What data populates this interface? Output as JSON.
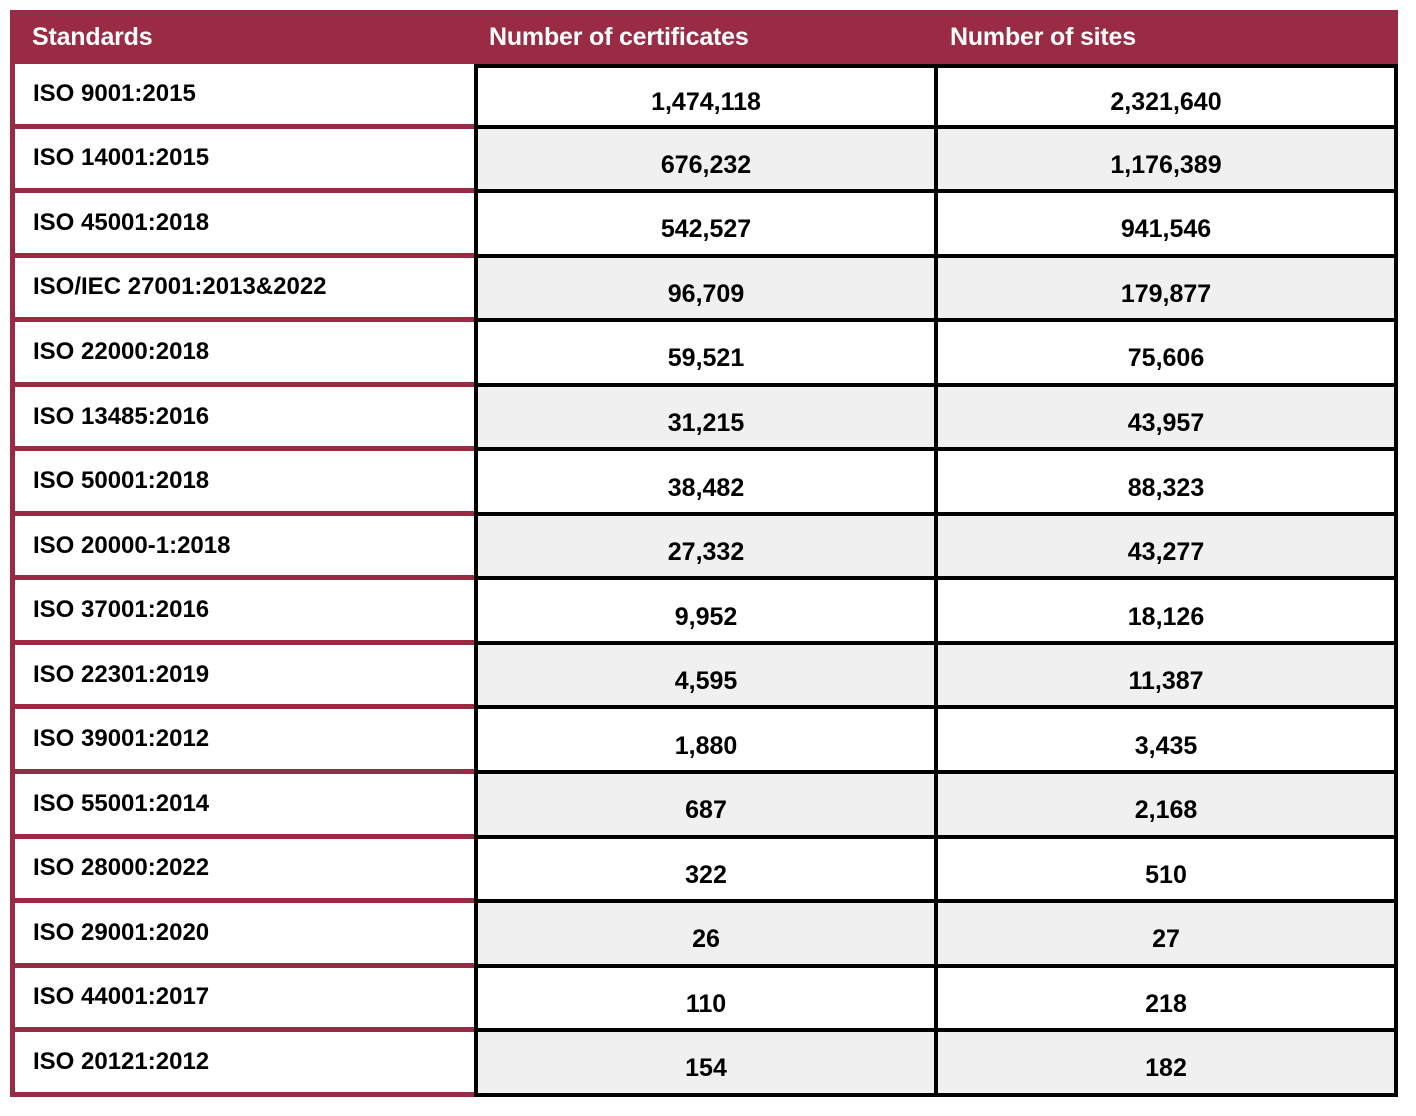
{
  "chart_data": {
    "type": "table",
    "columns": [
      "Standards",
      "Number of certificates",
      "Number of sites"
    ],
    "rows": [
      [
        "ISO 9001:2015",
        "1,474,118",
        "2,321,640"
      ],
      [
        "ISO 14001:2015",
        "676,232",
        "1,176,389"
      ],
      [
        "ISO 45001:2018",
        "542,527",
        "941,546"
      ],
      [
        "ISO/IEC 27001:2013&2022",
        "96,709",
        "179,877"
      ],
      [
        "ISO 22000:2018",
        "59,521",
        "75,606"
      ],
      [
        "ISO 13485:2016",
        "31,215",
        "43,957"
      ],
      [
        "ISO 50001:2018",
        "38,482",
        "88,323"
      ],
      [
        "ISO 20000-1:2018",
        "27,332",
        "43,277"
      ],
      [
        "ISO 37001:2016",
        "9,952",
        "18,126"
      ],
      [
        "ISO 22301:2019",
        "4,595",
        "11,387"
      ],
      [
        "ISO 39001:2012",
        "1,880",
        "3,435"
      ],
      [
        "ISO 55001:2014",
        "687",
        "2,168"
      ],
      [
        "ISO 28000:2022",
        "322",
        "510"
      ],
      [
        "ISO 29001:2020",
        "26",
        "27"
      ],
      [
        "ISO 44001:2017",
        "110",
        "218"
      ],
      [
        "ISO 20121:2012",
        "154",
        "182"
      ]
    ]
  },
  "colors": {
    "header_bg": "#9a2b45",
    "header_text": "#fdfdfd",
    "row_alt_bg": "#f0f0f0",
    "data_border": "#000000",
    "standard_border": "#9a2b45"
  }
}
